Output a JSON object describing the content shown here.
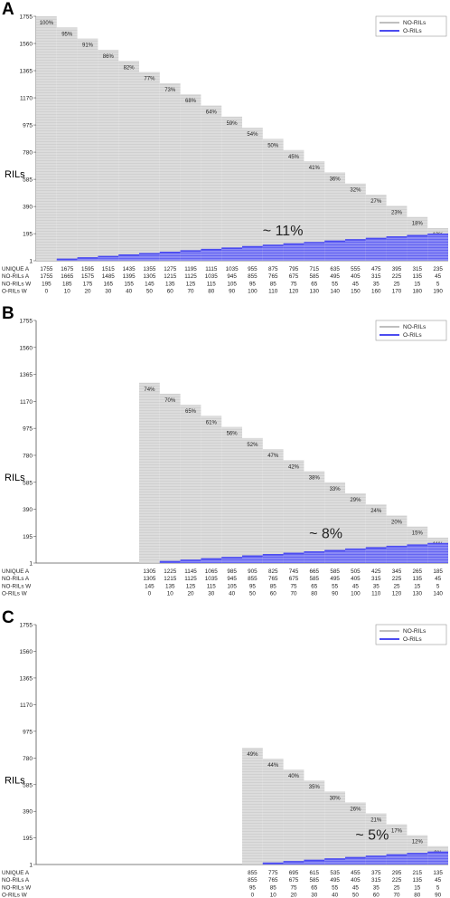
{
  "chart_data": [
    {
      "panel_letter": "A",
      "type": "bar",
      "ylabel": "RILs",
      "yticks": [
        1,
        195,
        390,
        585,
        780,
        975,
        1170,
        1365,
        1560,
        1755
      ],
      "ylim": [
        1,
        1755
      ],
      "legend": [
        "NO-RILs",
        "O-RILs"
      ],
      "legend_position": "top-right",
      "categories": [
        "1755",
        "1675",
        "1595",
        "1515",
        "1435",
        "1355",
        "1275",
        "1195",
        "1115",
        "1035",
        "955",
        "875",
        "795",
        "715",
        "635",
        "555",
        "475",
        "395",
        "315",
        "235"
      ],
      "unique_a": [
        1755,
        1675,
        1595,
        1515,
        1435,
        1355,
        1275,
        1195,
        1115,
        1035,
        955,
        875,
        795,
        715,
        635,
        555,
        475,
        395,
        315,
        235
      ],
      "no_rils_a": [
        1755,
        1665,
        1575,
        1485,
        1395,
        1305,
        1215,
        1125,
        1035,
        945,
        855,
        765,
        675,
        585,
        495,
        405,
        315,
        225,
        135,
        45
      ],
      "no_rils_w": [
        195,
        185,
        175,
        165,
        155,
        145,
        135,
        125,
        115,
        105,
        95,
        85,
        75,
        65,
        55,
        45,
        35,
        25,
        15,
        5
      ],
      "o_rils_w": [
        0,
        10,
        20,
        30,
        40,
        50,
        60,
        70,
        80,
        90,
        100,
        110,
        120,
        130,
        140,
        150,
        160,
        170,
        180,
        190
      ],
      "percent_labels": [
        "100%",
        "95%",
        "91%",
        "86%",
        "82%",
        "77%",
        "73%",
        "68%",
        "64%",
        "59%",
        "54%",
        "50%",
        "45%",
        "41%",
        "36%",
        "32%",
        "27%",
        "23%",
        "18%",
        "13%"
      ],
      "annotation": "~ 11%",
      "row_labels": [
        "UNIQUE A",
        "NO-RILs A",
        "NO-RILs W",
        "O-RILs W"
      ]
    },
    {
      "panel_letter": "B",
      "type": "bar",
      "ylabel": "RILs",
      "yticks": [
        1,
        195,
        390,
        585,
        780,
        975,
        1170,
        1365,
        1560,
        1755
      ],
      "ylim": [
        1,
        1755
      ],
      "legend": [
        "NO-RILs",
        "O-RILs"
      ],
      "legend_position": "top-right",
      "categories": [
        "1305",
        "1225",
        "1145",
        "1065",
        "985",
        "905",
        "825",
        "745",
        "665",
        "585",
        "505",
        "425",
        "345",
        "265",
        "185"
      ],
      "unique_a": [
        1305,
        1225,
        1145,
        1065,
        985,
        905,
        825,
        745,
        665,
        585,
        505,
        425,
        345,
        265,
        185
      ],
      "no_rils_a": [
        1305,
        1215,
        1125,
        1035,
        945,
        855,
        765,
        675,
        585,
        495,
        405,
        315,
        225,
        135,
        45
      ],
      "no_rils_w": [
        145,
        135,
        125,
        115,
        105,
        95,
        85,
        75,
        65,
        55,
        45,
        35,
        25,
        15,
        5
      ],
      "o_rils_w": [
        0,
        10,
        20,
        30,
        40,
        50,
        60,
        70,
        80,
        90,
        100,
        110,
        120,
        130,
        140
      ],
      "percent_labels": [
        "74%",
        "70%",
        "65%",
        "61%",
        "56%",
        "52%",
        "47%",
        "42%",
        "38%",
        "33%",
        "29%",
        "24%",
        "20%",
        "15%",
        "11%"
      ],
      "annotation": "~ 8%",
      "row_labels": [
        "UNIQUE A",
        "NO-RILs A",
        "NO-RILs W",
        "O-RILs W"
      ]
    },
    {
      "panel_letter": "C",
      "type": "bar",
      "ylabel": "RILs",
      "yticks": [
        1,
        195,
        390,
        585,
        780,
        975,
        1170,
        1365,
        1560,
        1755
      ],
      "ylim": [
        1,
        1755
      ],
      "legend": [
        "NO-RILs",
        "O-RILs"
      ],
      "legend_position": "top-right",
      "categories": [
        "855",
        "775",
        "695",
        "615",
        "535",
        "455",
        "375",
        "295",
        "215",
        "135"
      ],
      "unique_a": [
        855,
        775,
        695,
        615,
        535,
        455,
        375,
        295,
        215,
        135
      ],
      "no_rils_a": [
        855,
        765,
        675,
        585,
        495,
        405,
        315,
        225,
        135,
        45
      ],
      "no_rils_w": [
        95,
        85,
        75,
        65,
        55,
        45,
        35,
        25,
        15,
        5
      ],
      "o_rils_w": [
        0,
        10,
        20,
        30,
        40,
        50,
        60,
        70,
        80,
        90
      ],
      "percent_labels": [
        "49%",
        "44%",
        "40%",
        "35%",
        "30%",
        "26%",
        "21%",
        "17%",
        "12%",
        "8%"
      ],
      "annotation": "~ 5%",
      "row_labels": [
        "UNIQUE A",
        "NO-RILs A",
        "NO-RILs W",
        "O-RILs W"
      ]
    }
  ],
  "colors": {
    "no_rils": "#dcdcdc",
    "no_rils_line": "#c4c4c4",
    "o_rils": "#4c4cf0",
    "o_rils_light": "#8a8af5",
    "axis": "#555555"
  }
}
